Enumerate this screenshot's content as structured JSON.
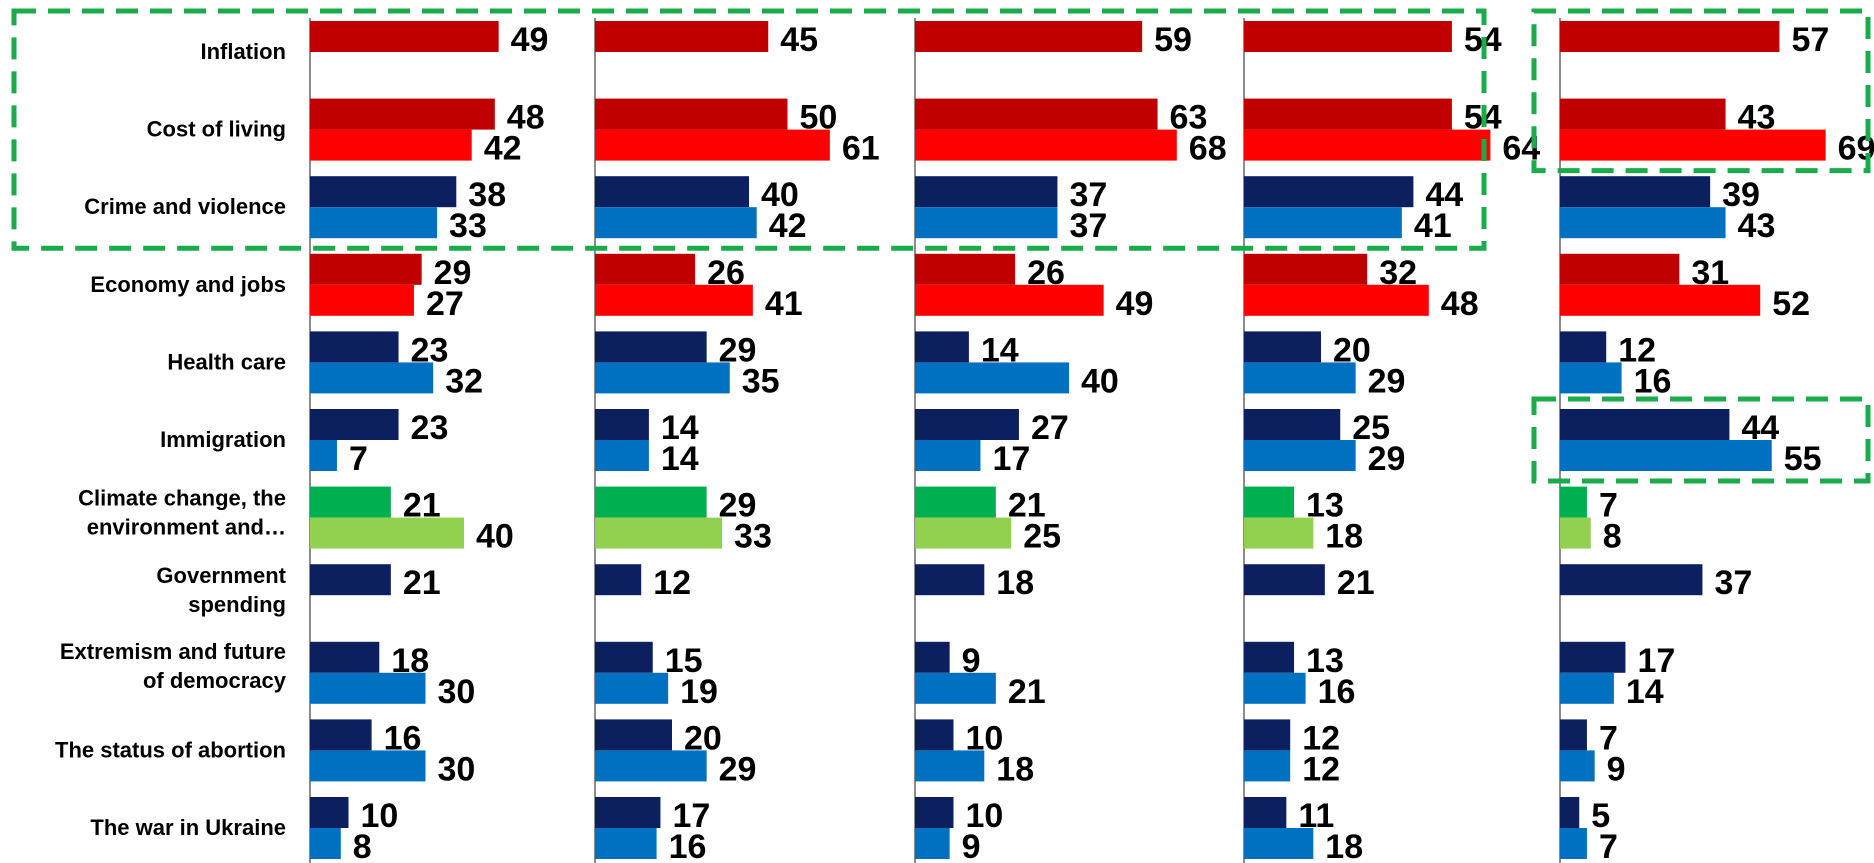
{
  "chart_data": {
    "type": "bar",
    "orientation": "horizontal",
    "grid": false,
    "legend": "none",
    "categories": [
      "Inflation",
      "Cost of living",
      "Crime and violence",
      "Economy and jobs",
      "Health care",
      "Immigration",
      "Climate change, the environment and…",
      "Government spending",
      "Extremism and future of democracy",
      "The status of abortion",
      "The war in Ukraine"
    ],
    "category_lines": [
      [
        "Inflation"
      ],
      [
        "Cost of living"
      ],
      [
        "Crime and violence"
      ],
      [
        "Economy and jobs"
      ],
      [
        "Health care"
      ],
      [
        "Immigration"
      ],
      [
        "Climate change, the",
        "environment and…"
      ],
      [
        "Government",
        "spending"
      ],
      [
        "Extremism and future",
        "of democracy"
      ],
      [
        "The status of abortion"
      ],
      [
        "The war in Ukraine"
      ]
    ],
    "panels": [
      {
        "first": [
          49,
          48,
          38,
          29,
          23,
          23,
          21,
          21,
          18,
          16,
          10
        ],
        "second": [
          null,
          42,
          33,
          27,
          32,
          7,
          40,
          null,
          30,
          30,
          8
        ]
      },
      {
        "first": [
          45,
          50,
          40,
          26,
          29,
          14,
          29,
          12,
          15,
          20,
          17
        ],
        "second": [
          null,
          61,
          42,
          41,
          35,
          14,
          33,
          null,
          19,
          29,
          16
        ]
      },
      {
        "first": [
          59,
          63,
          37,
          26,
          14,
          27,
          21,
          18,
          9,
          10,
          10
        ],
        "second": [
          null,
          68,
          37,
          49,
          40,
          17,
          25,
          null,
          21,
          18,
          9
        ]
      },
      {
        "first": [
          54,
          54,
          44,
          32,
          20,
          25,
          13,
          21,
          13,
          12,
          11
        ],
        "second": [
          null,
          64,
          41,
          48,
          29,
          29,
          18,
          null,
          16,
          12,
          18
        ]
      },
      {
        "first": [
          57,
          43,
          39,
          31,
          12,
          44,
          7,
          37,
          17,
          7,
          5
        ],
        "second": [
          null,
          69,
          43,
          52,
          16,
          55,
          8,
          null,
          14,
          9,
          7
        ]
      }
    ],
    "bar_group": [
      "red",
      "red",
      "blue",
      "red",
      "blue",
      "blue",
      "green",
      "blue",
      "blue",
      "blue",
      "blue"
    ],
    "colors": {
      "red": {
        "first": "#c00000",
        "second": "#ff0000"
      },
      "blue": {
        "first": "#0c2060",
        "second": "#0070c0"
      },
      "green": {
        "first": "#00b050",
        "second": "#92d050"
      },
      "axis": "#8c8c8c",
      "highlight": "#1aab4b"
    },
    "highlighted_regions": [
      {
        "panels": [
          0,
          3
        ],
        "categories": [
          0,
          2
        ]
      },
      {
        "panels": [
          4,
          4
        ],
        "categories": [
          0,
          1
        ]
      },
      {
        "panels": [
          4,
          4
        ],
        "categories": [
          5,
          5
        ]
      }
    ]
  }
}
